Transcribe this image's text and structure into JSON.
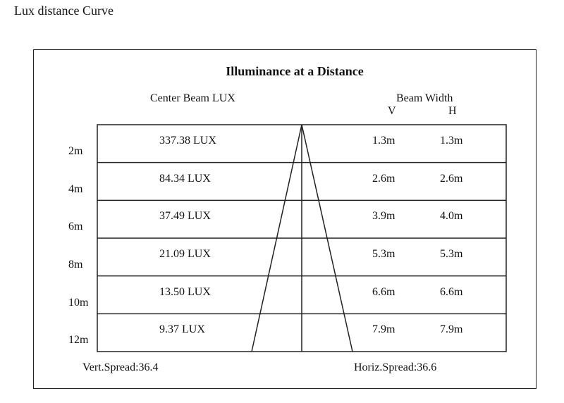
{
  "page_title": "Lux distance Curve",
  "diagram": {
    "title": "Illuminance at a Distance",
    "center_beam_header": "Center Beam LUX",
    "beam_width_header": "Beam Width",
    "v_header": "V",
    "h_header": "H",
    "rows": [
      {
        "distance": "2m",
        "lux": "337.38 LUX",
        "v": "1.3m",
        "h": "1.3m"
      },
      {
        "distance": "4m",
        "lux": "84.34 LUX",
        "v": "2.6m",
        "h": "2.6m"
      },
      {
        "distance": "6m",
        "lux": "37.49 LUX",
        "v": "3.9m",
        "h": "4.0m"
      },
      {
        "distance": "8m",
        "lux": "21.09 LUX",
        "v": "5.3m",
        "h": "5.3m"
      },
      {
        "distance": "10m",
        "lux": "13.50 LUX",
        "v": "6.6m",
        "h": "6.6m"
      },
      {
        "distance": "12m",
        "lux": "9.37 LUX",
        "v": "7.9m",
        "h": "7.9m"
      }
    ],
    "vert_spread": "Vert.Spread:36.4",
    "horiz_spread": "Horiz.Spread:36.6"
  }
}
